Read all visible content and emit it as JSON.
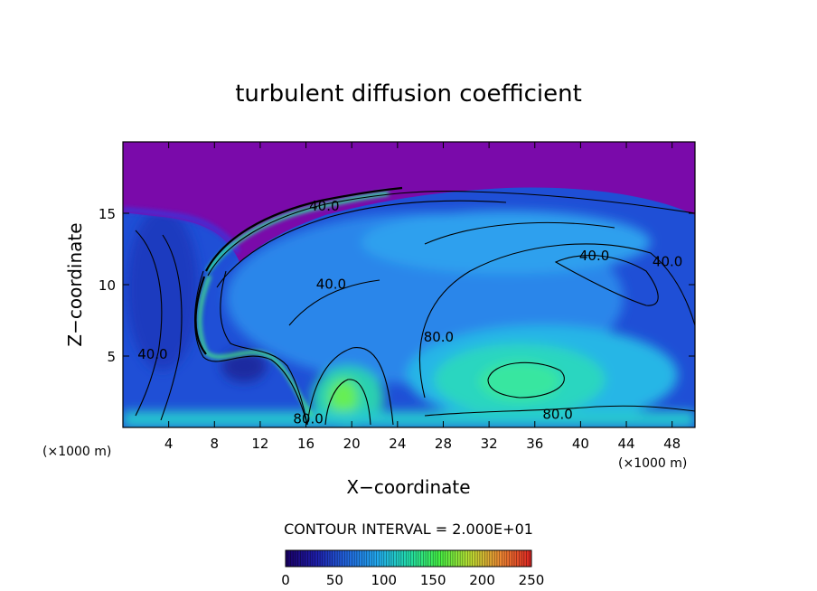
{
  "chart_data": {
    "type": "heatmap",
    "title": "turbulent diffusion coefficient",
    "xlabel": "X−coordinate",
    "ylabel": "Z−coordinate",
    "x_unit": "(×1000 m)",
    "y_unit": "(×1000 m)",
    "xlim": [
      0,
      50
    ],
    "ylim": [
      0,
      20
    ],
    "x_ticks": [
      4,
      8,
      12,
      16,
      20,
      24,
      28,
      32,
      36,
      40,
      44,
      48
    ],
    "y_ticks": [
      5,
      10,
      15
    ],
    "contour_interval_text": "CONTOUR INTERVAL = 2.000E+01",
    "contour_labels": [
      {
        "text": "40.0",
        "x": 17.6,
        "y": 15.2
      },
      {
        "text": "40.0",
        "x": 41.2,
        "y": 11.7
      },
      {
        "text": "40.0",
        "x": 47.6,
        "y": 11.3
      },
      {
        "text": "40.0",
        "x": 18.2,
        "y": 9.7
      },
      {
        "text": "80.0",
        "x": 27.6,
        "y": 6.0
      },
      {
        "text": "80.0",
        "x": 38.0,
        "y": 0.6
      },
      {
        "text": "80.0",
        "x": 16.2,
        "y": 0.3
      },
      {
        "text": "40.0",
        "x": 2.6,
        "y": 4.8
      }
    ],
    "colorbar": {
      "min": 0,
      "max": 250,
      "ticks": [
        0,
        50,
        100,
        150,
        200,
        250
      ],
      "stops": [
        "#1a0066",
        "#1e1eaa",
        "#2266dd",
        "#22aaee",
        "#22ddaa",
        "#44ee44",
        "#bbdd33",
        "#ee8833",
        "#dd2222"
      ]
    },
    "colors": {
      "upper_layer": "#7a0aaa",
      "dominant_low": "#1f5fe0",
      "mid": "#27a4ee",
      "high": "#2ae8b0",
      "peak": "#55ee44"
    }
  }
}
